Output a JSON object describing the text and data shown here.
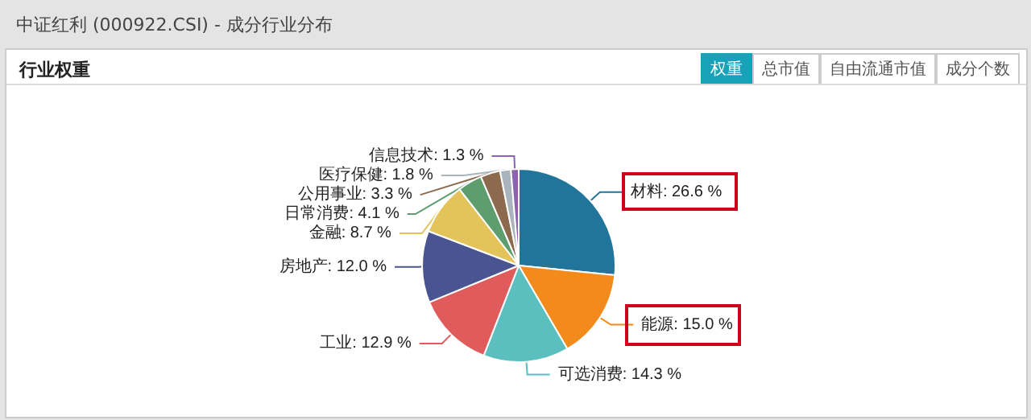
{
  "chart_data": {
    "type": "pie",
    "title": "中证红利 (000922.CSI) - 成分行业分布",
    "subtitle": "行业权重",
    "annotations": [
      "权重",
      "总市值",
      "自由流通市值",
      "成分个数"
    ],
    "categories": [
      "材料",
      "能源",
      "可选消费",
      "工业",
      "房地产",
      "金融",
      "日常消费",
      "公用事业",
      "医疗保健",
      "信息技术"
    ],
    "values": [
      26.6,
      15.0,
      14.3,
      12.9,
      12.0,
      8.7,
      4.1,
      3.3,
      1.8,
      1.3
    ],
    "colors": [
      "#21759b",
      "#f28a1c",
      "#5bbfc0",
      "#e05c5c",
      "#4a5490",
      "#e3c35a",
      "#5e9e6e",
      "#8c6a4e",
      "#a9b4bc",
      "#8a63b4"
    ],
    "value_labels": [
      ": 26.6 %",
      ": 15.0 %",
      ": 14.3 %",
      ": 12.9 %",
      ": 12.0 %",
      ": 8.7 %",
      ": 4.1 %",
      ": 3.3 %",
      ": 1.8 %",
      ": 1.3 %"
    ],
    "legend": false
  }
}
